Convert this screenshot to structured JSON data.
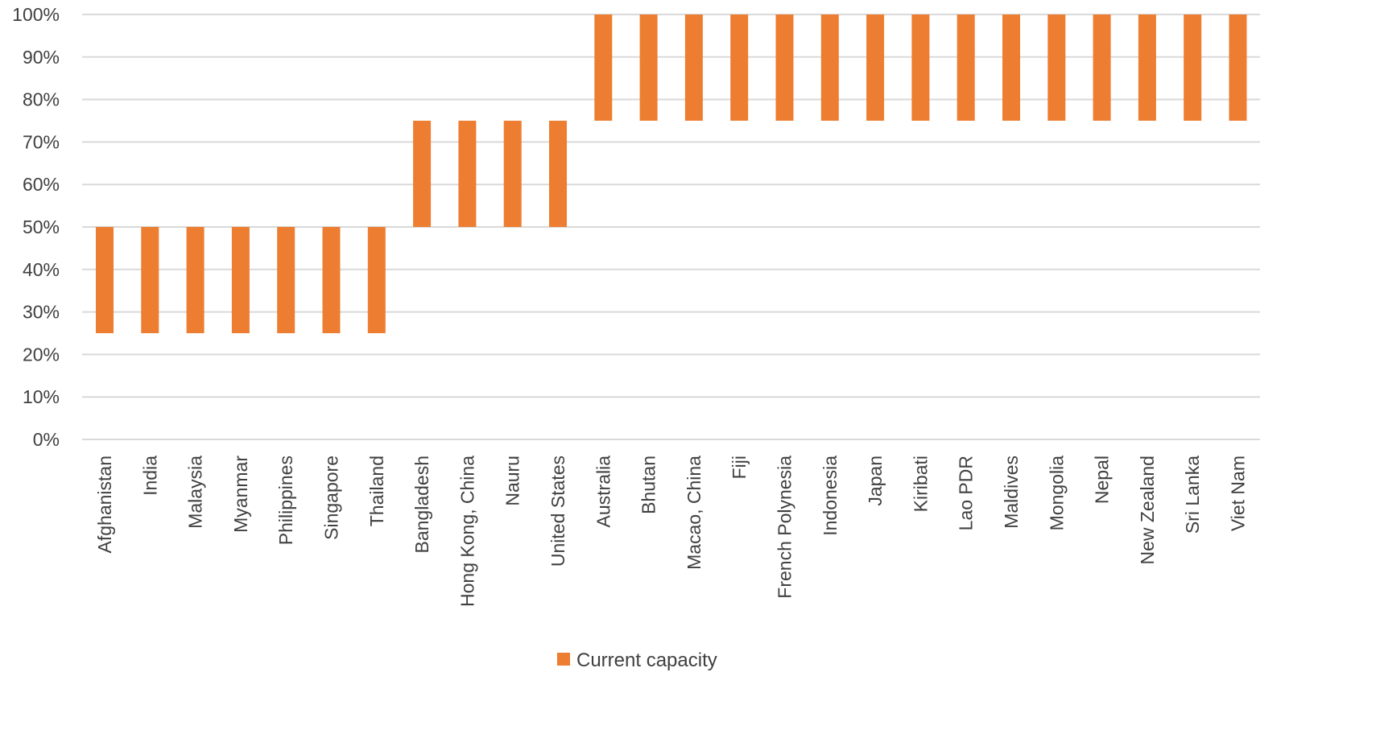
{
  "chart_data": {
    "type": "bar",
    "subtype": "floating-range",
    "categories": [
      "Afghanistan",
      "India",
      "Malaysia",
      "Myanmar",
      "Philippines",
      "Singapore",
      "Thailand",
      "Bangladesh",
      "Hong Kong, China",
      "Nauru",
      "United States",
      "Australia",
      "Bhutan",
      "Macao, China",
      "Fiji",
      "French Polynesia",
      "Indonesia",
      "Japan",
      "Kiribati",
      "Lao PDR",
      "Maldives",
      "Mongolia",
      "Nepal",
      "New Zealand",
      "Sri Lanka",
      "Viet Nam"
    ],
    "series": [
      {
        "name": "Current capacity",
        "color": "#ED7D31",
        "ranges": [
          [
            25,
            50
          ],
          [
            25,
            50
          ],
          [
            25,
            50
          ],
          [
            25,
            50
          ],
          [
            25,
            50
          ],
          [
            25,
            50
          ],
          [
            25,
            50
          ],
          [
            50,
            75
          ],
          [
            50,
            75
          ],
          [
            50,
            75
          ],
          [
            50,
            75
          ],
          [
            75,
            100
          ],
          [
            75,
            100
          ],
          [
            75,
            100
          ],
          [
            75,
            100
          ],
          [
            75,
            100
          ],
          [
            75,
            100
          ],
          [
            75,
            100
          ],
          [
            75,
            100
          ],
          [
            75,
            100
          ],
          [
            75,
            100
          ],
          [
            75,
            100
          ],
          [
            75,
            100
          ],
          [
            75,
            100
          ],
          [
            75,
            100
          ],
          [
            75,
            100
          ]
        ]
      }
    ],
    "yticks": [
      "0%",
      "10%",
      "20%",
      "30%",
      "40%",
      "50%",
      "60%",
      "70%",
      "80%",
      "90%",
      "100%"
    ],
    "ylim": [
      0,
      100
    ],
    "grid": true,
    "gridColor": "#D9D9D9",
    "legend": "bottom-center",
    "title": "",
    "xlabel": "",
    "ylabel": ""
  }
}
